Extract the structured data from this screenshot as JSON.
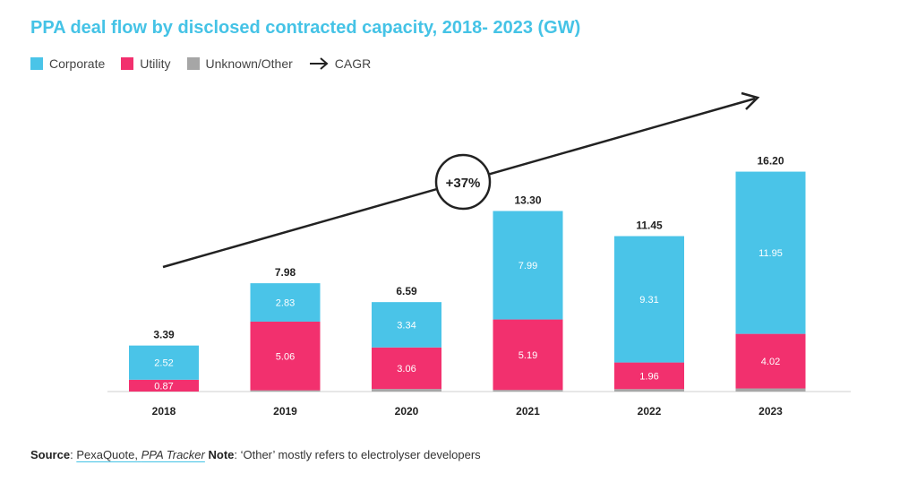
{
  "title": "PPA deal flow by disclosed contracted capacity, 2018- 2023 (GW)",
  "legend": {
    "corporate": "Corporate",
    "utility": "Utility",
    "other": "Unknown/Other",
    "cagr": "CAGR",
    "cagr_icon": "right-arrow-icon"
  },
  "colors": {
    "corporate": "#4ac4e8",
    "utility": "#f2306e",
    "other": "#a6a6a6",
    "title": "#45c3e6"
  },
  "footer": {
    "source_label": "Source",
    "source_text": "PexaQuote,",
    "source_italic": "PPA Tracker",
    "note_label": "Note",
    "note_text": ": ‘Other’ mostly refers to electrolyser developers"
  },
  "chart_data": {
    "type": "bar",
    "stacked": true,
    "categories": [
      "2018",
      "2019",
      "2020",
      "2021",
      "2022",
      "2023"
    ],
    "series": [
      {
        "name": "Unknown/Other",
        "values": [
          0.0,
          0.09,
          0.19,
          0.12,
          0.18,
          0.23
        ]
      },
      {
        "name": "Utility",
        "values": [
          0.87,
          5.06,
          3.06,
          5.19,
          1.96,
          4.02
        ]
      },
      {
        "name": "Corporate",
        "values": [
          2.52,
          2.83,
          3.34,
          7.99,
          9.31,
          11.95
        ]
      }
    ],
    "segment_labels": {
      "Utility": [
        "0.87",
        "5.06",
        "3.06",
        "5.19",
        "1.96",
        "4.02"
      ],
      "Corporate": [
        "2.52",
        "2.83",
        "3.34",
        "7.99",
        "9.31",
        "11.95"
      ]
    },
    "totals": [
      "3.39",
      "7.98",
      "6.59",
      "13.30",
      "11.45",
      "16.20"
    ],
    "annotation": {
      "label": "+37%",
      "meaning": "CAGR"
    },
    "ylim": [
      0,
      17.5
    ],
    "grid": false,
    "legend_position": "top-left"
  }
}
